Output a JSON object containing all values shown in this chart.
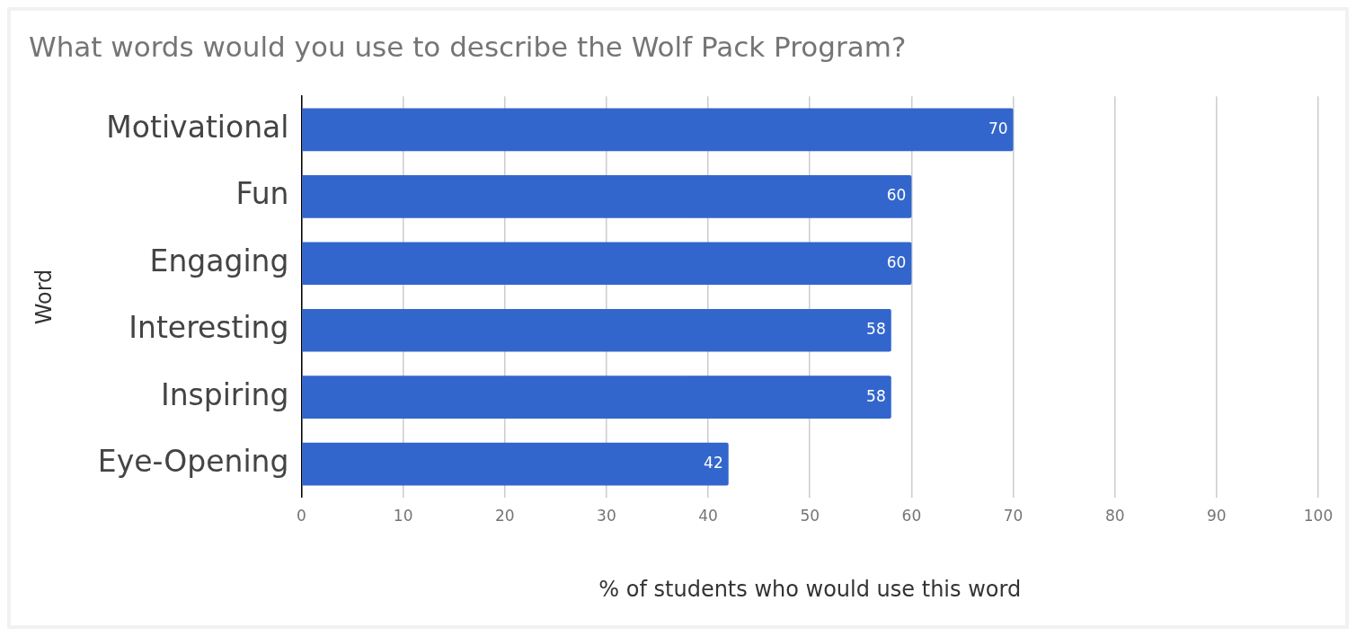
{
  "chart_data": {
    "type": "bar",
    "orientation": "horizontal",
    "title": "What words would you use to describe the Wolf Pack Program?",
    "xlabel": "% of students who would use this word",
    "ylabel": "Word",
    "categories": [
      "Motivational",
      "Fun",
      "Engaging",
      "Interesting",
      "Inspiring",
      "Eye-Opening"
    ],
    "values": [
      70,
      60,
      60,
      58,
      58,
      42
    ],
    "color": "#3366cc",
    "xlim": [
      0,
      100
    ],
    "xticks": [
      0,
      10,
      20,
      30,
      40,
      50,
      60,
      70,
      80,
      90,
      100
    ],
    "grid": "x",
    "legend": false,
    "data_labels": true
  }
}
